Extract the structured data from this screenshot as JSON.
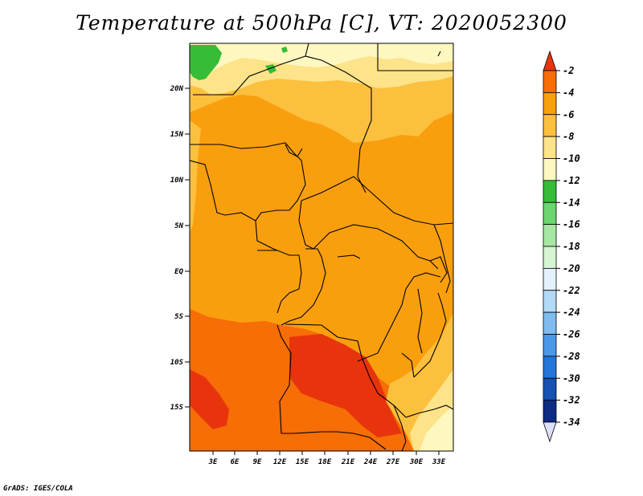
{
  "title": "Temperature at 500hPa [C], VT: 2020052300",
  "credit": "GrADS: IGES/COLA",
  "map": {
    "lon_labels": [
      "3E",
      "6E",
      "9E",
      "12E",
      "15E",
      "18E",
      "21E",
      "24E",
      "27E",
      "30E",
      "33E"
    ],
    "lat_labels": [
      "20N",
      "15N",
      "10N",
      "5N",
      "EQ",
      "5S",
      "10S",
      "15S"
    ]
  },
  "colorbar": {
    "labels": [
      "-2",
      "-4",
      "-6",
      "-8",
      "-10",
      "-12",
      "-14",
      "-16",
      "-18",
      "-20",
      "-22",
      "-24",
      "-26",
      "-28",
      "-30",
      "-32",
      "-34"
    ],
    "colors": [
      "#e8340c",
      "#f76d06",
      "#f99f0e",
      "#fbc03e",
      "#fde389",
      "#fff7c0",
      "#35bd37",
      "#6bd56e",
      "#a6e8a2",
      "#d6f5d3",
      "#e2f1fb",
      "#b2daf7",
      "#7fbcf0",
      "#4a98e8",
      "#2375d8",
      "#1552b2",
      "#0c2b85",
      "#0a1060"
    ],
    "top_color": "#e8340c",
    "bottom_color": "#dde0f8"
  }
}
